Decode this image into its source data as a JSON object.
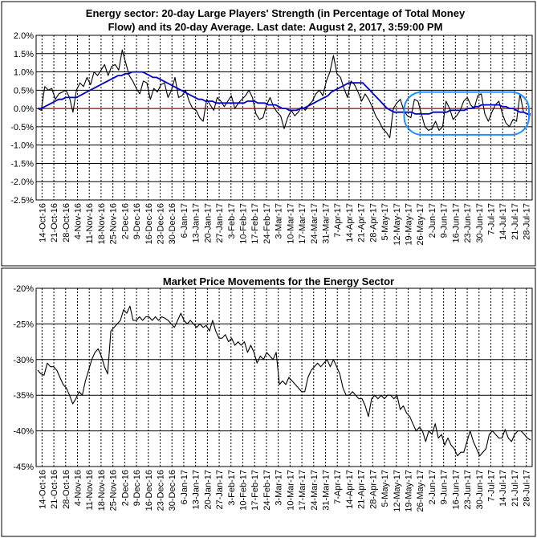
{
  "chart_data": [
    {
      "type": "line",
      "title": "Energy sector: 20-day Large Players' Strength (in Percentage of Total Money Flow) and its 20-day Average. Last date: August 2, 2017, 3:59:00 PM",
      "title_lines": [
        "Energy sector: 20-day Large Players' Strength (in Percentage of Total Money",
        "Flow) and its 20-day Average. Last date: August 2, 2017, 3:59:00 PM"
      ],
      "y_ticks": [
        "2.0%",
        "1.5%",
        "1.0%",
        "0.5%",
        "0.0%",
        "-0.5%",
        "-1.0%",
        "-1.5%",
        "-2.0%",
        "-2.5%"
      ],
      "ylim": [
        -2.5,
        2.0
      ],
      "x_ticks": [
        "14-Oct-16",
        "21-Oct-16",
        "28-Oct-16",
        "4-Nov-16",
        "11-Nov-16",
        "18-Nov-16",
        "25-Nov-16",
        "2-Dec-16",
        "9-Dec-16",
        "16-Dec-16",
        "23-Dec-16",
        "30-Dec-16",
        "6-Jan-17",
        "13-Jan-17",
        "20-Jan-17",
        "27-Jan-17",
        "3-Feb-17",
        "10-Feb-17",
        "17-Feb-17",
        "24-Feb-17",
        "3-Mar-17",
        "10-Mar-17",
        "17-Mar-17",
        "24-Mar-17",
        "31-Mar-17",
        "7-Apr-17",
        "14-Apr-17",
        "21-Apr-17",
        "28-Apr-17",
        "5-May-17",
        "12-May-17",
        "19-May-17",
        "26-May-17",
        "2-Jun-17",
        "9-Jun-17",
        "16-Jun-17",
        "23-Jun-17",
        "30-Jun-17",
        "7-Jul-17",
        "14-Jul-17",
        "21-Jul-17",
        "28-Jul-17"
      ],
      "grid": true,
      "colors": {
        "strength": "#000000",
        "average": "#0000cc",
        "zero_line": "#cc0000",
        "highlight": "#1e90ff"
      },
      "series": [
        {
          "values": [
            0.0,
            -0.05,
            0.6,
            0.5,
            0.55,
            0.25,
            0.4,
            0.45,
            0.5,
            0.3,
            -0.1,
            0.5,
            0.7,
            0.6,
            0.85,
            0.65,
            1.0,
            0.9,
            1.05,
            1.2,
            0.9,
            1.15,
            1.2,
            1.05,
            1.6,
            1.25,
            0.9,
            0.75,
            0.55,
            0.4,
            0.75,
            0.7,
            0.25,
            0.55,
            0.45,
            0.65,
            0.7,
            0.3,
            0.5,
            0.85,
            0.3,
            0.35,
            0.5,
            0.2,
            0.0,
            -0.05,
            -0.25,
            -0.35,
            0.25,
            0.1,
            -0.05,
            0.3,
            0.2,
            0.05,
            0.2,
            0.35,
            0.0,
            0.15,
            0.25,
            0.35,
            0.5,
            0.3,
            -0.15,
            -0.3,
            -0.25,
            0.1,
            0.3,
            0.05,
            -0.1,
            -0.2,
            -0.55,
            -0.25,
            -0.05,
            -0.2,
            -0.1,
            0.05,
            -0.05,
            0.1,
            0.2,
            0.4,
            0.5,
            0.35,
            0.75,
            1.0,
            1.45,
            0.95,
            0.85,
            0.55,
            0.3,
            0.75,
            0.65,
            0.45,
            0.2,
            0.4,
            0.25,
            0.05,
            -0.2,
            -0.35,
            -0.55,
            -0.65,
            -0.8,
            0.0,
            0.15,
            0.25,
            -0.05,
            -0.2,
            -0.25,
            0.25,
            0.2,
            -0.15,
            -0.5,
            -0.6,
            -0.55,
            -0.35,
            -0.6,
            -0.5,
            0.2,
            0.0,
            -0.3,
            -0.2,
            -0.05,
            0.2,
            0.3,
            0.1,
            0.0,
            0.35,
            0.4,
            -0.15,
            -0.35,
            -0.1,
            0.1,
            0.2,
            -0.15,
            -0.4,
            -0.5,
            -0.3,
            -0.35,
            0.4,
            -0.1,
            -0.15,
            -0.2
          ]
        },
        {
          "values": [
            0.0,
            0.0,
            0.05,
            0.1,
            0.15,
            0.2,
            0.25,
            0.25,
            0.3,
            0.3,
            0.3,
            0.3,
            0.35,
            0.4,
            0.45,
            0.5,
            0.55,
            0.6,
            0.65,
            0.7,
            0.75,
            0.8,
            0.85,
            0.9,
            0.9,
            0.95,
            0.95,
            1.0,
            1.0,
            1.0,
            1.0,
            0.95,
            0.9,
            0.85,
            0.85,
            0.8,
            0.75,
            0.7,
            0.65,
            0.6,
            0.55,
            0.5,
            0.45,
            0.4,
            0.35,
            0.3,
            0.25,
            0.25,
            0.2,
            0.2,
            0.2,
            0.15,
            0.15,
            0.15,
            0.15,
            0.15,
            0.15,
            0.15,
            0.15,
            0.15,
            0.2,
            0.2,
            0.2,
            0.15,
            0.15,
            0.15,
            0.1,
            0.1,
            0.1,
            0.05,
            0.0,
            0.0,
            -0.05,
            -0.05,
            -0.05,
            0.0,
            0.0,
            0.05,
            0.1,
            0.15,
            0.2,
            0.25,
            0.3,
            0.35,
            0.45,
            0.5,
            0.55,
            0.6,
            0.65,
            0.7,
            0.7,
            0.7,
            0.7,
            0.7,
            0.6,
            0.5,
            0.4,
            0.3,
            0.2,
            0.1,
            0.0,
            -0.05,
            -0.1,
            -0.1,
            -0.1,
            -0.1,
            -0.1,
            -0.1,
            -0.15,
            -0.15,
            -0.15,
            -0.15,
            -0.15,
            -0.1,
            -0.1,
            -0.1,
            -0.1,
            -0.1,
            -0.05,
            -0.05,
            -0.05,
            -0.05,
            -0.05,
            0.0,
            0.0,
            0.05,
            0.05,
            0.1,
            0.1,
            0.1,
            0.1,
            0.1,
            0.1,
            0.05,
            0.05,
            0.0,
            0.0,
            -0.05,
            -0.1,
            -0.1,
            -0.15,
            -0.15
          ]
        }
      ]
    },
    {
      "type": "line",
      "title": "Market Price Movements for the Energy Sector",
      "y_ticks": [
        "-20%",
        "-25%",
        "-30%",
        "-35%",
        "-40%",
        "-45%"
      ],
      "ylim": [
        -45,
        -20
      ],
      "x_ticks": [
        "14-Oct-16",
        "21-Oct-16",
        "28-Oct-16",
        "4-Nov-16",
        "11-Nov-16",
        "18-Nov-16",
        "25-Nov-16",
        "2-Dec-16",
        "9-Dec-16",
        "16-Dec-16",
        "23-Dec-16",
        "30-Dec-16",
        "6-Jan-17",
        "13-Jan-17",
        "20-Jan-17",
        "27-Jan-17",
        "3-Feb-17",
        "10-Feb-17",
        "17-Feb-17",
        "24-Feb-17",
        "3-Mar-17",
        "10-Mar-17",
        "17-Mar-17",
        "24-Mar-17",
        "31-Mar-17",
        "7-Apr-17",
        "14-Apr-17",
        "21-Apr-17",
        "28-Apr-17",
        "5-May-17",
        "12-May-17",
        "19-May-17",
        "26-May-17",
        "2-Jun-17",
        "9-Jun-17",
        "16-Jun-17",
        "23-Jun-17",
        "30-Jun-17",
        "7-Jul-17",
        "14-Jul-17",
        "21-Jul-17",
        "28-Jul-17"
      ],
      "grid": true,
      "series": [
        {
          "values": [
            -31.5,
            -32,
            -32.2,
            -30.5,
            -31,
            -31,
            -31.5,
            -32.5,
            -33.5,
            -34,
            -35,
            -36.2,
            -35.5,
            -34.5,
            -35,
            -33,
            -31.5,
            -30,
            -29,
            -28.5,
            -29.5,
            -31,
            -32,
            -26,
            -25.5,
            -25,
            -24.5,
            -23,
            -23.5,
            -22.5,
            -24.5,
            -24.5,
            -24,
            -24.5,
            -24,
            -24,
            -24.5,
            -24,
            -24.5,
            -24,
            -24.2,
            -24.5,
            -25,
            -25.5,
            -24.5,
            -23.5,
            -24.5,
            -25,
            -24.5,
            -25,
            -25.5,
            -25,
            -25.5,
            -25.2,
            -26,
            -24.5,
            -26,
            -27,
            -27,
            -26.5,
            -27.5,
            -27,
            -28,
            -27.5,
            -28,
            -27.5,
            -29,
            -28,
            -29,
            -30.5,
            -29.5,
            -30,
            -29,
            -29.5,
            -30,
            -29,
            -33.5,
            -33,
            -33.5,
            -32.5,
            -33,
            -33.5,
            -34,
            -34.5,
            -34.5,
            -32.5,
            -31.5,
            -31,
            -30.5,
            -31,
            -30.5,
            -30,
            -31,
            -30,
            -31,
            -32,
            -34,
            -35,
            -35,
            -34.5,
            -35,
            -35.5,
            -35.5,
            -36.5,
            -38,
            -35.5,
            -35,
            -35.5,
            -35,
            -35.5,
            -35,
            -35,
            -35.5,
            -35,
            -37,
            -36.5,
            -37.5,
            -38,
            -39,
            -40,
            -39.5,
            -40,
            -41.5,
            -40,
            -40.5,
            -39,
            -41,
            -40.5,
            -42,
            -41,
            -42,
            -42.5,
            -43.5,
            -43,
            -43,
            -41.5,
            -40,
            -41.5,
            -42.5,
            -43.5,
            -43,
            -42.5,
            -40.5,
            -40,
            -40.5,
            -41,
            -41,
            -39.8,
            -41,
            -41.5,
            -40.5,
            -40,
            -40,
            -40.5,
            -41,
            -41.3
          ]
        }
      ]
    }
  ]
}
